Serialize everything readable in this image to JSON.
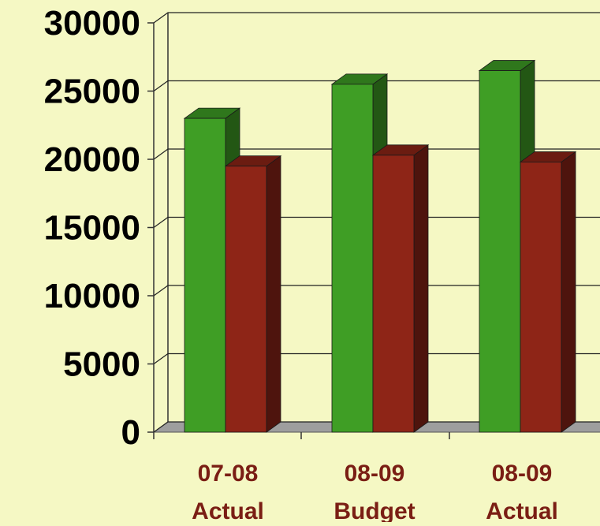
{
  "chart_data": {
    "type": "bar",
    "categories": [
      [
        "07-08",
        "Actual"
      ],
      [
        "08-09",
        "Budget"
      ],
      [
        "08-09",
        "Actual"
      ]
    ],
    "series": [
      {
        "values": [
          23000,
          25500,
          26500
        ],
        "color": "#3F9E25"
      },
      {
        "values": [
          19500,
          20300,
          19800
        ],
        "color": "#8E2517"
      }
    ],
    "ylim": [
      0,
      30000
    ],
    "yticks": [
      "0",
      "5000",
      "10000",
      "15000",
      "20000",
      "25000",
      "30000"
    ],
    "grid": true,
    "legend": false,
    "style": "3d-clustered-column",
    "background_color": "#F5F8C4",
    "floor_color": "#9E9E9E"
  }
}
